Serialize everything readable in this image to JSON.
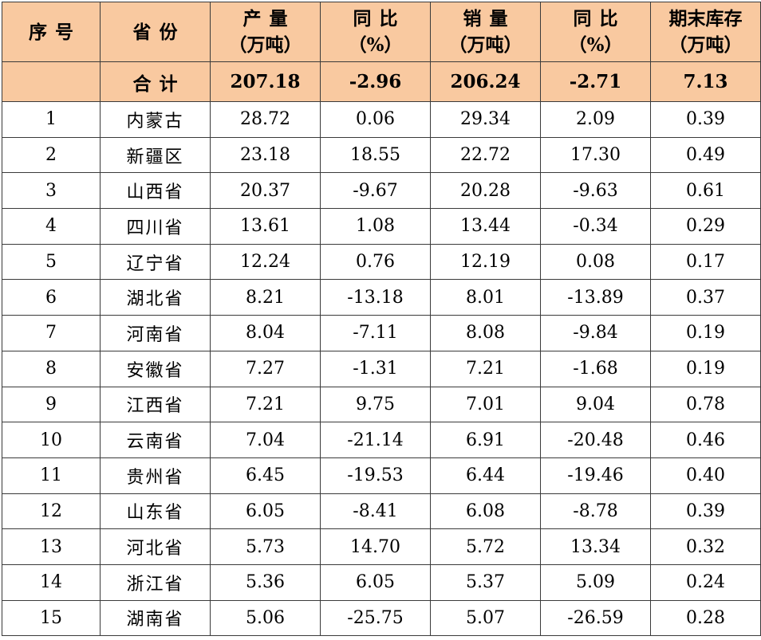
{
  "headers": {
    "seq": "序号",
    "province": "省份",
    "production": [
      "产量",
      "（万吨）"
    ],
    "production_yoy": [
      "同比",
      "（%）"
    ],
    "sales": [
      "销量",
      "（万吨）"
    ],
    "sales_yoy": [
      "同比",
      "（%）"
    ],
    "inventory": [
      "期末库存",
      "（万吨）"
    ]
  },
  "total": {
    "label": "合计",
    "production": "207.18",
    "production_yoy": "-2.96",
    "sales": "206.24",
    "sales_yoy": "-2.71",
    "inventory": "7.13"
  },
  "rows": [
    {
      "seq": "1",
      "province": "内蒙古",
      "production": "28.72",
      "production_yoy": "0.06",
      "sales": "29.34",
      "sales_yoy": "2.09",
      "inventory": "0.39"
    },
    {
      "seq": "2",
      "province": "新疆区",
      "production": "23.18",
      "production_yoy": "18.55",
      "sales": "22.72",
      "sales_yoy": "17.30",
      "inventory": "0.49"
    },
    {
      "seq": "3",
      "province": "山西省",
      "production": "20.37",
      "production_yoy": "-9.67",
      "sales": "20.28",
      "sales_yoy": "-9.63",
      "inventory": "0.61"
    },
    {
      "seq": "4",
      "province": "四川省",
      "production": "13.61",
      "production_yoy": "1.08",
      "sales": "13.44",
      "sales_yoy": "-0.34",
      "inventory": "0.29"
    },
    {
      "seq": "5",
      "province": "辽宁省",
      "production": "12.24",
      "production_yoy": "0.76",
      "sales": "12.19",
      "sales_yoy": "0.08",
      "inventory": "0.17"
    },
    {
      "seq": "6",
      "province": "湖北省",
      "production": "8.21",
      "production_yoy": "-13.18",
      "sales": "8.01",
      "sales_yoy": "-13.89",
      "inventory": "0.37"
    },
    {
      "seq": "7",
      "province": "河南省",
      "production": "8.04",
      "production_yoy": "-7.11",
      "sales": "8.08",
      "sales_yoy": "-9.84",
      "inventory": "0.19"
    },
    {
      "seq": "8",
      "province": "安徽省",
      "production": "7.27",
      "production_yoy": "-1.31",
      "sales": "7.21",
      "sales_yoy": "-1.68",
      "inventory": "0.19"
    },
    {
      "seq": "9",
      "province": "江西省",
      "production": "7.21",
      "production_yoy": "9.75",
      "sales": "7.01",
      "sales_yoy": "9.04",
      "inventory": "0.78"
    },
    {
      "seq": "10",
      "province": "云南省",
      "production": "7.04",
      "production_yoy": "-21.14",
      "sales": "6.91",
      "sales_yoy": "-20.48",
      "inventory": "0.46"
    },
    {
      "seq": "11",
      "province": "贵州省",
      "production": "6.45",
      "production_yoy": "-19.53",
      "sales": "6.44",
      "sales_yoy": "-19.46",
      "inventory": "0.40"
    },
    {
      "seq": "12",
      "province": "山东省",
      "production": "6.05",
      "production_yoy": "-8.41",
      "sales": "6.08",
      "sales_yoy": "-8.78",
      "inventory": "0.39"
    },
    {
      "seq": "13",
      "province": "河北省",
      "production": "5.73",
      "production_yoy": "14.70",
      "sales": "5.72",
      "sales_yoy": "13.34",
      "inventory": "0.32"
    },
    {
      "seq": "14",
      "province": "浙江省",
      "production": "5.36",
      "production_yoy": "6.05",
      "sales": "5.37",
      "sales_yoy": "5.09",
      "inventory": "0.24"
    },
    {
      "seq": "15",
      "province": "湖南省",
      "production": "5.06",
      "production_yoy": "-25.75",
      "sales": "5.07",
      "sales_yoy": "-26.59",
      "inventory": "0.28"
    }
  ],
  "colors": {
    "header_bg": "#f9c9a0",
    "border": "#3a3a3a"
  }
}
